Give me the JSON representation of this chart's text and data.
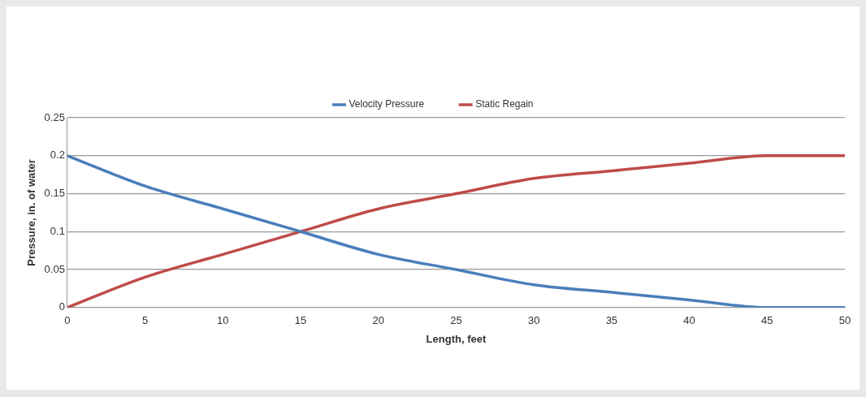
{
  "chart_data": {
    "type": "line",
    "xlabel": "Length, feet",
    "ylabel": "Pressure, in. of water",
    "x": [
      0,
      5,
      10,
      15,
      20,
      25,
      30,
      35,
      40,
      45,
      50
    ],
    "series": [
      {
        "name": "Velocity Pressure",
        "color": "#4a7ebb",
        "values": [
          0.2,
          0.16,
          0.13,
          0.1,
          0.07,
          0.05,
          0.03,
          0.02,
          0.01,
          0,
          0
        ]
      },
      {
        "name": "Static Regain",
        "color": "#be4b48",
        "values": [
          0,
          0.04,
          0.07,
          0.1,
          0.13,
          0.15,
          0.17,
          0.18,
          0.19,
          0.2,
          0.2
        ]
      }
    ],
    "xlim": [
      0,
      50
    ],
    "xticks": [
      0,
      5,
      10,
      15,
      20,
      25,
      30,
      35,
      40,
      45,
      50
    ],
    "ylim": [
      0,
      0.25
    ],
    "yticks": [
      0,
      0.05,
      0.1,
      0.15,
      0.2,
      0.25
    ],
    "grid": "y",
    "legend": "top",
    "marker": "none",
    "line_style": "solid"
  }
}
